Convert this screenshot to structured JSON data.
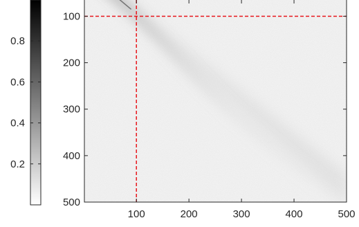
{
  "chart_data": {
    "type": "heatmap",
    "title": "",
    "xlabel": "",
    "ylabel": "",
    "x_range": [
      1,
      500
    ],
    "y_range": [
      1,
      500
    ],
    "y_direction": "reversed",
    "x_ticks": [
      100,
      200,
      300,
      400,
      500
    ],
    "y_ticks": [
      100,
      200,
      300,
      400,
      500
    ],
    "x_tick_labels": [
      "100",
      "200",
      "300",
      "400",
      "500"
    ],
    "y_tick_labels": [
      "100",
      "200",
      "300",
      "400",
      "500"
    ],
    "colormap": "gray",
    "colormap_reversed": true,
    "color_range": [
      0,
      1
    ],
    "colorbar_ticks": [
      0.2,
      0.4,
      0.6,
      0.8
    ],
    "colorbar_tick_labels": [
      "0.2",
      "0.4",
      "0.6",
      "0.8"
    ],
    "colorbar_position": "left",
    "reference_lines": [
      {
        "orientation": "vertical",
        "x": 100,
        "color": "#e8151b",
        "style": "dashed"
      },
      {
        "orientation": "horizontal",
        "y": 100,
        "color": "#e8151b",
        "style": "dashed"
      }
    ],
    "grid": false
  }
}
